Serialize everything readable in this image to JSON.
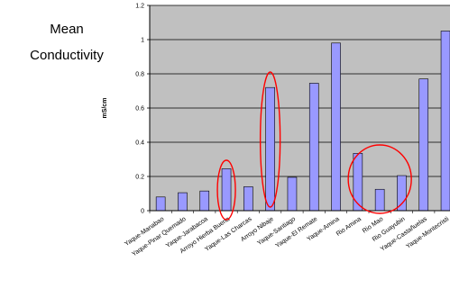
{
  "side_title": {
    "line1": "Mean",
    "line2": "Conductivity"
  },
  "colors": {
    "plot_bg": "#c0c0c0",
    "bar_fill": "#9999ff",
    "bar_stroke": "#000000",
    "highlight": "#ff0000"
  },
  "chart_data": {
    "type": "bar",
    "ylabel": "mS/cm",
    "ylim": [
      0,
      1.2
    ],
    "yticks": [
      "0",
      "0.2",
      "0.4",
      "0.6",
      "0.8",
      "1",
      "1.2"
    ],
    "grid": true,
    "categories": [
      "Yaque-Manabao",
      "Yaque-Pinar Quemado",
      "Yaque-Jarabacoa",
      "Arroyo Hierba Buena",
      "Yaque-Las Charcas",
      "Arroyo Nibaje",
      "Yaque-Santiago",
      "Yaque-El Remate",
      "Yaque-Amina",
      "Rio Amina",
      "Rio Mao",
      "Rio Guayubin",
      "Yaque-Castañuelas",
      "Yaque-Montecristi"
    ],
    "tick_labels": [
      "Yaque-Manabao",
      "Yaque-Pinar Quemado",
      "Yaque-Jarabacoa",
      "Arroyo Hierba Buena",
      "Yaque-Las Charcas",
      "Arroyo Nibaje",
      "Yaque-Santiago",
      "Yaque-El Remate",
      "Yaque-Amina",
      "Rio Amina",
      "Rio Mao",
      "Rio Guayubin",
      "Yaque-Castañuelas",
      "Yaque-Montecristi"
    ],
    "values": [
      0.08,
      0.105,
      0.115,
      0.245,
      0.14,
      0.72,
      0.195,
      0.745,
      0.98,
      0.335,
      0.125,
      0.205,
      0.77,
      1.05
    ],
    "highlighted_categories": [
      "Arroyo Hierba Buena",
      "Arroyo Nibaje",
      "Rio Amina",
      "Rio Mao",
      "Rio Guayubin"
    ]
  }
}
